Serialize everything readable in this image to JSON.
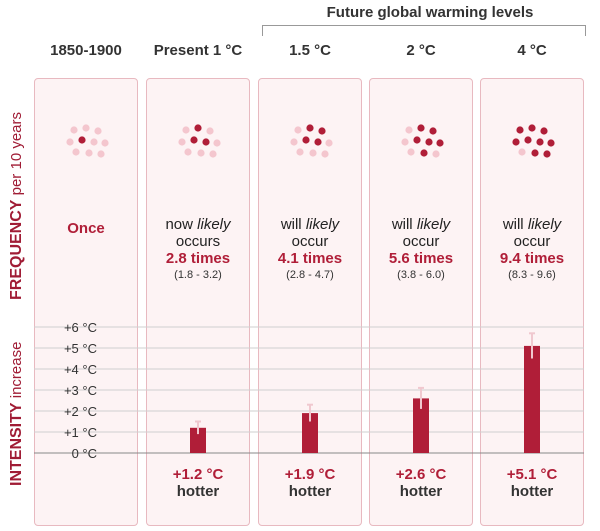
{
  "header": {
    "future_label": "Future global warming levels"
  },
  "y_labels": {
    "frequency_main": "FREQUENCY",
    "frequency_sub": "per 10 years",
    "intensity_main": "INTENSITY",
    "intensity_sub": "increase"
  },
  "columns": [
    {
      "title": "1850-1900",
      "dots_total": 10,
      "dots_highlighted": 1,
      "freq_once": "Once",
      "freq_line1": "",
      "freq_italic": "",
      "freq_line2": "",
      "multiplier": "",
      "range": "",
      "hotter_value": "",
      "hotter_word": ""
    },
    {
      "title": "Present 1 °C",
      "dots_total": 10,
      "dots_highlighted": 3,
      "freq_once": "",
      "freq_line1": "now",
      "freq_italic": "likely",
      "freq_line2": "occurs",
      "multiplier": "2.8 times",
      "range": "(1.8 - 3.2)",
      "hotter_value": "+1.2 °C",
      "hotter_word": "hotter"
    },
    {
      "title": "1.5 °C",
      "dots_total": 10,
      "dots_highlighted": 4,
      "freq_once": "",
      "freq_line1": "will",
      "freq_italic": "likely",
      "freq_line2": "occur",
      "multiplier": "4.1 times",
      "range": "(2.8 - 4.7)",
      "hotter_value": "+1.9 °C",
      "hotter_word": "hotter"
    },
    {
      "title": "2 °C",
      "dots_total": 10,
      "dots_highlighted": 6,
      "freq_once": "",
      "freq_line1": "will",
      "freq_italic": "likely",
      "freq_line2": "occur",
      "multiplier": "5.6 times",
      "range": "(3.8 - 6.0)",
      "hotter_value": "+2.6 °C",
      "hotter_word": "hotter"
    },
    {
      "title": "4 °C",
      "dots_total": 10,
      "dots_highlighted": 9,
      "freq_once": "",
      "freq_line1": "will",
      "freq_italic": "likely",
      "freq_line2": "occur",
      "multiplier": "9.4 times",
      "range": "(8.3 - 9.6)",
      "hotter_value": "+5.1 °C",
      "hotter_word": "hotter"
    }
  ],
  "colors": {
    "accent": "#b01e38",
    "dot_light": "#f4c6ce",
    "panel_bg": "#fdf3f4",
    "bar": "#b01e38",
    "errorbar": "#f0c8cf"
  },
  "chart_data": {
    "type": "bar",
    "title": "",
    "ylabel": "INTENSITY increase",
    "categories": [
      "1850-1900",
      "Present 1 °C",
      "1.5 °C",
      "2 °C",
      "4 °C"
    ],
    "values": [
      0,
      1.2,
      1.9,
      2.6,
      5.1
    ],
    "error_low": [
      null,
      0.9,
      1.5,
      2.1,
      4.5
    ],
    "error_high": [
      null,
      1.5,
      2.3,
      3.1,
      5.7
    ],
    "yticks": [
      "0 °C",
      "+1 °C",
      "+2 °C",
      "+3 °C",
      "+4 °C",
      "+5 °C",
      "+6 °C"
    ],
    "ylim": [
      0,
      6
    ],
    "grid": true
  }
}
